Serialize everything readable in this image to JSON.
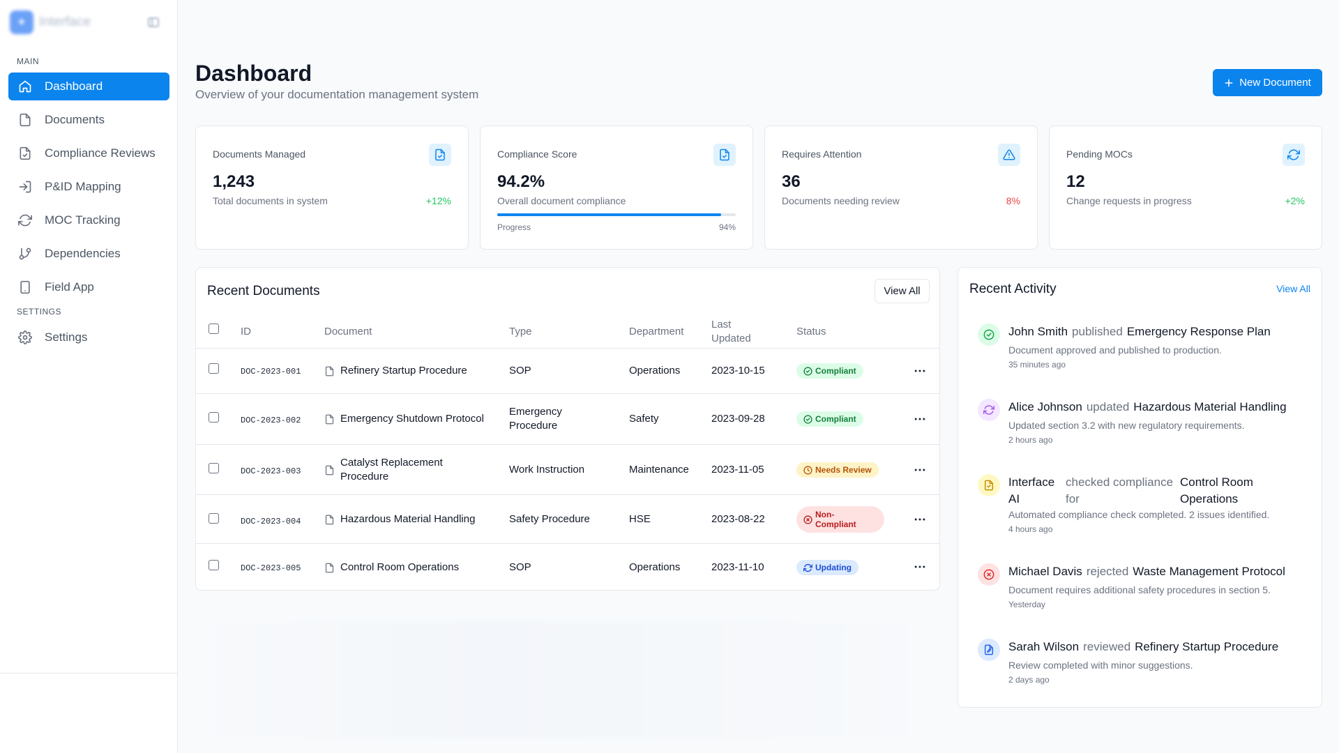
{
  "brand": {
    "name": "Interface",
    "logo_icon": "spark-icon"
  },
  "sidebar": {
    "main_label": "MAIN",
    "settings_label": "SETTINGS",
    "items": [
      {
        "label": "Dashboard",
        "icon": "home-icon",
        "active": true
      },
      {
        "label": "Documents",
        "icon": "file-icon"
      },
      {
        "label": "Compliance Reviews",
        "icon": "file-check-icon"
      },
      {
        "label": "P&ID Mapping",
        "icon": "login-icon"
      },
      {
        "label": "MOC Tracking",
        "icon": "refresh-icon"
      },
      {
        "label": "Dependencies",
        "icon": "git-branch-icon"
      },
      {
        "label": "Field App",
        "icon": "phone-icon"
      }
    ],
    "settings_item": {
      "label": "Settings",
      "icon": "gear-icon"
    }
  },
  "header": {
    "title": "Dashboard",
    "subtitle": "Overview of your documentation management system",
    "new_button": "New Document"
  },
  "stats": [
    {
      "label": "Documents Managed",
      "value": "1,243",
      "desc": "Total documents in system",
      "change": "+12%",
      "trend": "up",
      "icon": "file-check-icon",
      "icon_color": "#0b84ee",
      "icon_bg": "#e0f2fe"
    },
    {
      "label": "Compliance Score",
      "value": "94.2%",
      "desc": "Overall document compliance",
      "progress_label": "Progress",
      "progress_value": "94%",
      "progress": 0.94,
      "icon": "file-check-icon",
      "icon_color": "#0b84ee",
      "icon_bg": "#e0f2fe"
    },
    {
      "label": "Requires Attention",
      "value": "36",
      "desc": "Documents needing review",
      "change": "8%",
      "trend": "down",
      "icon": "warning-icon",
      "icon_color": "#0b84ee",
      "icon_bg": "#e0f2fe"
    },
    {
      "label": "Pending MOCs",
      "value": "12",
      "desc": "Change requests in progress",
      "change": "+2%",
      "trend": "up",
      "icon": "refresh-icon",
      "icon_color": "#0b84ee",
      "icon_bg": "#e0f2fe"
    }
  ],
  "documents": {
    "title": "Recent Documents",
    "view_all": "View All",
    "columns": {
      "id": "ID",
      "document": "Document",
      "type": "Type",
      "department": "Department",
      "last_updated": "Last Updated",
      "status": "Status"
    },
    "rows": [
      {
        "id": "DOC-2023-001",
        "name": "Refinery Startup Procedure",
        "type": "SOP",
        "department": "Operations",
        "updated": "2023-10-15",
        "status": "Compliant",
        "status_kind": "green"
      },
      {
        "id": "DOC-2023-002",
        "name": "Emergency Shutdown Protocol",
        "type": "Emergency Procedure",
        "department": "Safety",
        "updated": "2023-09-28",
        "status": "Compliant",
        "status_kind": "green"
      },
      {
        "id": "DOC-2023-003",
        "name": "Catalyst Replacement Procedure",
        "type": "Work Instruction",
        "department": "Maintenance",
        "updated": "2023-11-05",
        "status": "Needs Review",
        "status_kind": "yellow"
      },
      {
        "id": "DOC-2023-004",
        "name": "Hazardous Material Handling",
        "type": "Safety Procedure",
        "department": "HSE",
        "updated": "2023-08-22",
        "status": "Non-Compliant",
        "status_kind": "red"
      },
      {
        "id": "DOC-2023-005",
        "name": "Control Room Operations",
        "type": "SOP",
        "department": "Operations",
        "updated": "2023-11-10",
        "status": "Updating",
        "status_kind": "blue"
      }
    ]
  },
  "activity": {
    "title": "Recent Activity",
    "view_all": "View All",
    "items": [
      {
        "user": "John Smith",
        "verb": "published",
        "target": "Emergency Response Plan",
        "desc": "Document approved and published to production.",
        "time": "35 minutes ago",
        "icon": "check-circle-icon",
        "color": "#16a34a",
        "bg": "#dcfce7"
      },
      {
        "user": "Alice Johnson",
        "verb": "updated",
        "target": "Hazardous Material Handling",
        "desc": "Updated section 3.2 with new regulatory requirements.",
        "time": "2 hours ago",
        "icon": "refresh-icon",
        "color": "#a855f7",
        "bg": "#f3e8ff"
      },
      {
        "user": "Interface AI",
        "verb": "checked compliance for",
        "target": "Control Room Operations",
        "desc": "Automated compliance check completed. 2 issues identified.",
        "time": "4 hours ago",
        "icon": "ai-check-icon",
        "color": "#ca8a04",
        "bg": "#fef9c3"
      },
      {
        "user": "Michael Davis",
        "verb": "rejected",
        "target": "Waste Management Protocol",
        "desc": "Document requires additional safety procedures in section 5.",
        "time": "Yesterday",
        "icon": "x-circle-icon",
        "color": "#dc2626",
        "bg": "#fee2e2"
      },
      {
        "user": "Sarah Wilson",
        "verb": "reviewed",
        "target": "Refinery Startup Procedure",
        "desc": "Review completed with minor suggestions.",
        "time": "2 days ago",
        "icon": "file-edit-icon",
        "color": "#2563eb",
        "bg": "#dbeafe"
      }
    ]
  }
}
